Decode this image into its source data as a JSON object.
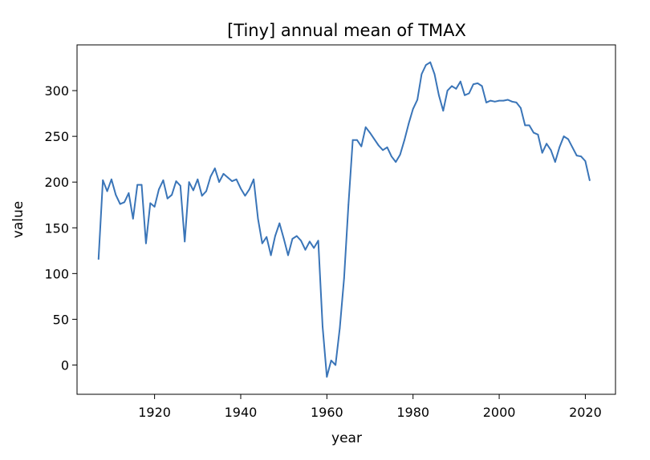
{
  "chart_data": {
    "type": "line",
    "title": "[Tiny] annual mean of TMAX",
    "xlabel": "year",
    "ylabel": "value",
    "xlim": [
      1902,
      2027
    ],
    "ylim": [
      -32,
      350
    ],
    "x_ticks": [
      1920,
      1940,
      1960,
      1980,
      2000,
      2020
    ],
    "y_ticks": [
      0,
      50,
      100,
      150,
      200,
      250,
      300
    ],
    "grid": false,
    "legend": "none",
    "series": [
      {
        "color": "#3a75b8",
        "x": [
          1907,
          1908,
          1909,
          1910,
          1911,
          1912,
          1913,
          1914,
          1915,
          1916,
          1917,
          1918,
          1919,
          1920,
          1921,
          1922,
          1923,
          1924,
          1925,
          1926,
          1927,
          1928,
          1929,
          1930,
          1931,
          1932,
          1933,
          1934,
          1935,
          1936,
          1937,
          1938,
          1939,
          1940,
          1941,
          1942,
          1943,
          1944,
          1945,
          1946,
          1947,
          1948,
          1949,
          1950,
          1951,
          1952,
          1953,
          1954,
          1955,
          1956,
          1957,
          1958,
          1959,
          1960,
          1961,
          1962,
          1963,
          1964,
          1965,
          1966,
          1967,
          1968,
          1969,
          1970,
          1971,
          1972,
          1973,
          1974,
          1975,
          1976,
          1977,
          1978,
          1979,
          1980,
          1981,
          1982,
          1983,
          1984,
          1985,
          1986,
          1987,
          1988,
          1989,
          1990,
          1991,
          1992,
          1993,
          1994,
          1995,
          1996,
          1997,
          1998,
          1999,
          2000,
          2001,
          2002,
          2003,
          2004,
          2005,
          2006,
          2007,
          2008,
          2009,
          2010,
          2011,
          2012,
          2013,
          2014,
          2015,
          2016,
          2017,
          2018,
          2019,
          2020,
          2021
        ],
        "values": [
          116,
          202,
          190,
          203,
          186,
          176,
          178,
          188,
          160,
          197,
          197,
          133,
          177,
          173,
          192,
          202,
          182,
          186,
          201,
          196,
          135,
          200,
          191,
          203,
          185,
          190,
          206,
          215,
          200,
          209,
          205,
          201,
          203,
          193,
          185,
          192,
          203,
          160,
          133,
          140,
          120,
          141,
          155,
          138,
          120,
          138,
          141,
          136,
          126,
          135,
          128,
          136,
          42,
          -13,
          5,
          0,
          40,
          95,
          175,
          246,
          246,
          239,
          260,
          254,
          247,
          240,
          235,
          238,
          228,
          222,
          230,
          246,
          264,
          280,
          290,
          318,
          328,
          331,
          318,
          295,
          278,
          300,
          305,
          302,
          310,
          295,
          297,
          307,
          308,
          305,
          287,
          289,
          288,
          289,
          289,
          290,
          288,
          287,
          281,
          262,
          262,
          254,
          252,
          232,
          242,
          235,
          222,
          238,
          250,
          247,
          238,
          229,
          228,
          223,
          202
        ]
      }
    ]
  }
}
